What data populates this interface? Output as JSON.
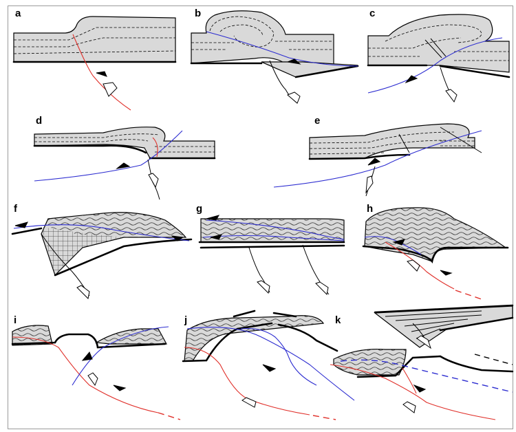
{
  "panels": [
    {
      "id": "a",
      "label": "a"
    },
    {
      "id": "b",
      "label": "b"
    },
    {
      "id": "c",
      "label": "c"
    },
    {
      "id": "d",
      "label": "d"
    },
    {
      "id": "e",
      "label": "e"
    },
    {
      "id": "f",
      "label": "f"
    },
    {
      "id": "g",
      "label": "g"
    },
    {
      "id": "h",
      "label": "h"
    },
    {
      "id": "i",
      "label": "i"
    },
    {
      "id": "j",
      "label": "j"
    },
    {
      "id": "k",
      "label": "k"
    }
  ],
  "colors": {
    "layer_fill": "#d9d9d9",
    "outline": "#000000",
    "blue_fault": "#2b2bd0",
    "red_fault": "#e0302a",
    "frame": "#9a9a9a"
  }
}
